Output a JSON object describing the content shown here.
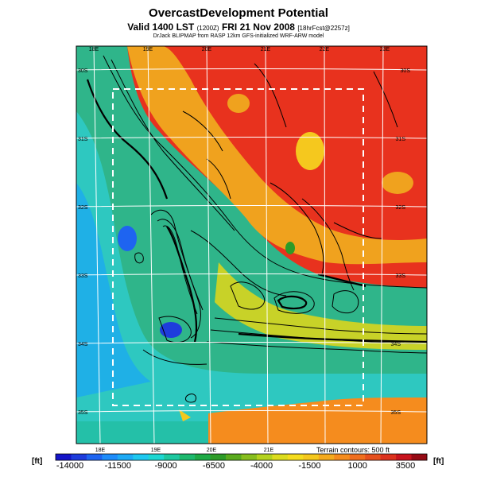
{
  "header": {
    "title": "OvercastDevelopment Potential",
    "valid_main": "Valid 1400 LST",
    "valid_zulu": "(1200Z)",
    "valid_date": "FRI 21 Nov 2008",
    "forecast_tag": "[18hrFcst@2257z]",
    "credit": "DrJack BLIPMAP from RASP 12km GFS-initialized WRF-ARW model"
  },
  "longitude_labels_top": [
    "18E",
    "19E",
    "20E",
    "21E",
    "22E",
    "23E"
  ],
  "longitude_labels_bottom": [
    "18E",
    "19E",
    "20E",
    "21E"
  ],
  "latitude_labels_left": [
    "30S",
    "31S",
    "32S",
    "33S",
    "34S",
    "35S"
  ],
  "latitude_labels_right": [
    "30S",
    "31S",
    "32S",
    "33S",
    "34S",
    "35S"
  ],
  "terrain_note": "Terrain contours: 500 ft",
  "colorbar": {
    "unit_left": "[ft]",
    "unit_right": "[ft]",
    "tick_labels": [
      "-14000",
      "-11500",
      "-9000",
      "-6500",
      "-4000",
      "-1500",
      "1000",
      "3500"
    ],
    "range": [
      -14000,
      3500
    ],
    "colors": [
      "#1515c8",
      "#1e3cdc",
      "#1e64f0",
      "#1e8cfa",
      "#1eaaf5",
      "#1ec8f0",
      "#1ed7d2",
      "#1ec8a0",
      "#1eb96e",
      "#1eaa46",
      "#2d9b28",
      "#5aaa1e",
      "#87be1e",
      "#b4d21e",
      "#dcdc1e",
      "#f5dc1e",
      "#f5c81e",
      "#f5aa1e",
      "#f58c1e",
      "#f06e1e",
      "#e6501e",
      "#dc321e",
      "#c8141e",
      "#960a14"
    ]
  }
}
